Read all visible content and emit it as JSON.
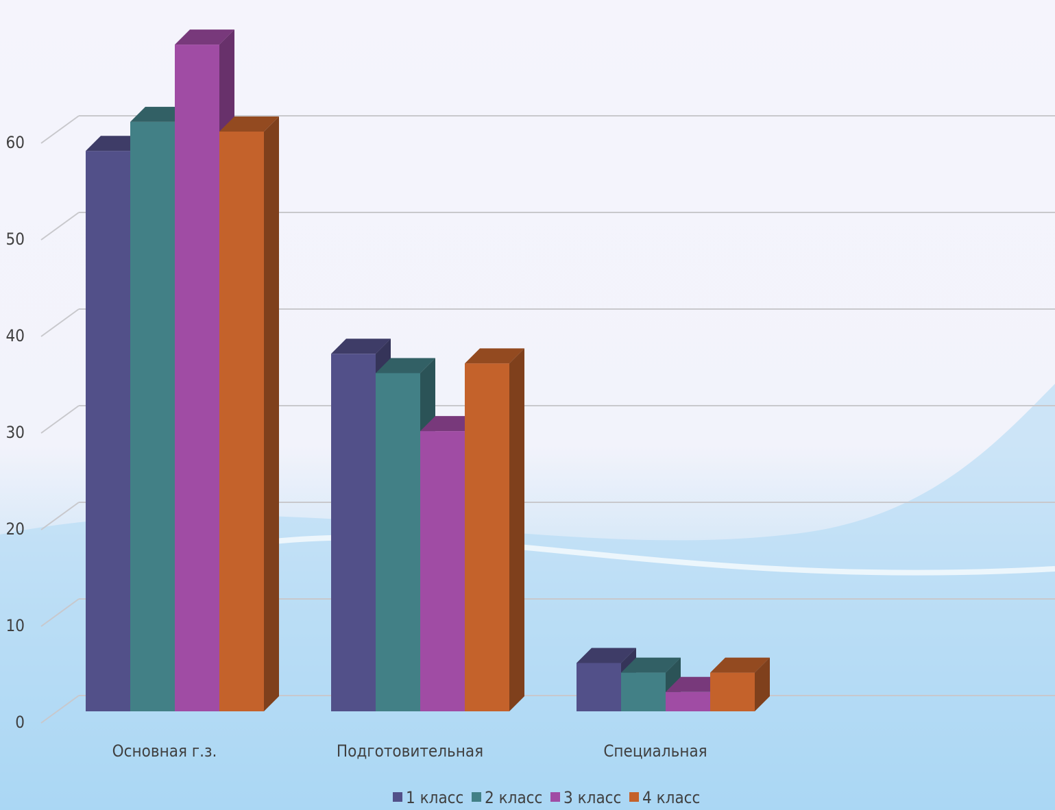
{
  "chart_data": {
    "type": "bar3d",
    "categories": [
      "Основная г.з.",
      "Подготовительная",
      "Специальная"
    ],
    "series": [
      {
        "name": "1 класс",
        "color": "#525089",
        "values": [
          58,
          37,
          5
        ]
      },
      {
        "name": "2 класс",
        "color": "#428086",
        "values": [
          61,
          35,
          4
        ]
      },
      {
        "name": "3 класс",
        "color": "#a04ca4",
        "values": [
          69,
          29,
          2
        ]
      },
      {
        "name": "4 класс",
        "color": "#c4622b",
        "values": [
          60,
          36,
          4
        ]
      }
    ],
    "ylim": [
      0,
      70
    ],
    "yticks": [
      0,
      10,
      20,
      30,
      40,
      50,
      60
    ],
    "grid": true,
    "legend": "bottom"
  }
}
